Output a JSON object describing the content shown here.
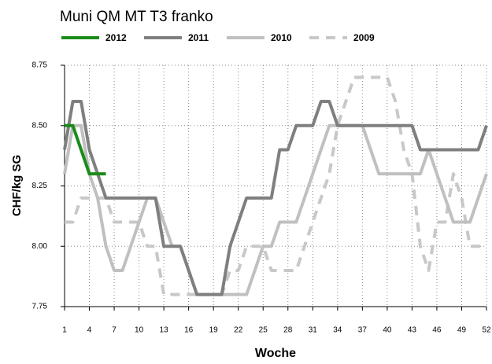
{
  "chart_data": {
    "type": "line",
    "title": "Muni QM MT T3 franko",
    "x_label": "Woche",
    "y_label": "CHF/kg SG",
    "x": [
      1,
      2,
      3,
      4,
      5,
      6,
      7,
      8,
      9,
      10,
      11,
      12,
      13,
      14,
      15,
      16,
      17,
      18,
      19,
      20,
      21,
      22,
      23,
      24,
      25,
      26,
      27,
      28,
      29,
      30,
      31,
      32,
      33,
      34,
      35,
      36,
      37,
      38,
      39,
      40,
      41,
      42,
      43,
      44,
      45,
      46,
      47,
      48,
      49,
      50,
      51,
      52
    ],
    "series": [
      {
        "name": "2012",
        "color": "#1a8c1a",
        "dashed": false,
        "values": [
          8.5,
          8.5,
          8.4,
          8.3,
          8.3,
          8.3,
          null,
          null,
          null,
          null,
          null,
          null,
          null,
          null,
          null,
          null,
          null,
          null,
          null,
          null,
          null,
          null,
          null,
          null,
          null,
          null,
          null,
          null,
          null,
          null,
          null,
          null,
          null,
          null,
          null,
          null,
          null,
          null,
          null,
          null,
          null,
          null,
          null,
          null,
          null,
          null,
          null,
          null,
          null,
          null,
          null,
          null
        ]
      },
      {
        "name": "2011",
        "color": "#7f7f7f",
        "dashed": false,
        "values": [
          8.4,
          8.6,
          8.6,
          8.4,
          8.3,
          8.2,
          8.2,
          8.2,
          8.2,
          8.2,
          8.2,
          8.2,
          8.0,
          8.0,
          8.0,
          7.9,
          7.8,
          7.8,
          7.8,
          7.8,
          8.0,
          8.1,
          8.2,
          8.2,
          8.2,
          8.2,
          8.4,
          8.4,
          8.5,
          8.5,
          8.5,
          8.6,
          8.6,
          8.5,
          8.5,
          8.5,
          8.5,
          8.5,
          8.5,
          8.5,
          8.5,
          8.5,
          8.5,
          8.4,
          8.4,
          8.4,
          8.4,
          8.4,
          8.4,
          8.4,
          8.4,
          8.5
        ]
      },
      {
        "name": "2010",
        "color": "#c0c0c0",
        "dashed": false,
        "values": [
          8.3,
          8.5,
          8.5,
          8.3,
          8.2,
          8.0,
          7.9,
          7.9,
          8.0,
          8.1,
          8.2,
          8.2,
          8.1,
          8.0,
          8.0,
          7.9,
          7.8,
          7.8,
          7.8,
          7.8,
          7.8,
          7.8,
          7.8,
          7.9,
          8.0,
          8.0,
          8.1,
          8.1,
          8.1,
          8.2,
          8.3,
          8.4,
          8.5,
          8.5,
          8.5,
          8.5,
          8.5,
          8.4,
          8.3,
          8.3,
          8.3,
          8.3,
          8.3,
          8.3,
          8.4,
          8.3,
          8.2,
          8.1,
          8.1,
          8.1,
          8.2,
          8.3
        ]
      },
      {
        "name": "2009",
        "color": "#c8c8c8",
        "dashed": true,
        "values": [
          8.1,
          8.1,
          8.2,
          8.2,
          8.2,
          8.2,
          8.1,
          8.1,
          8.1,
          8.1,
          8.0,
          8.0,
          7.8,
          7.8,
          7.8,
          7.8,
          7.8,
          7.8,
          7.8,
          7.8,
          7.9,
          7.9,
          8.0,
          8.0,
          8.0,
          7.9,
          7.9,
          7.9,
          7.9,
          8.0,
          8.1,
          8.2,
          8.3,
          8.5,
          8.6,
          8.7,
          8.7,
          8.7,
          8.7,
          8.7,
          8.6,
          8.4,
          8.3,
          8.0,
          7.9,
          8.1,
          8.1,
          8.3,
          8.2,
          8.0,
          8.0,
          8.0
        ]
      }
    ],
    "xlim": [
      1,
      52
    ],
    "xticks": [
      1,
      4,
      7,
      10,
      13,
      16,
      19,
      22,
      25,
      28,
      31,
      34,
      37,
      40,
      43,
      46,
      49,
      52
    ],
    "ylim": [
      7.75,
      8.75
    ],
    "yticks": [
      7.75,
      {
        "value": 8,
        "label": "8.00"
      },
      8.25,
      {
        "value": 8.5,
        "label": "8.50"
      },
      8.75
    ],
    "grid": true,
    "legend": "top"
  }
}
